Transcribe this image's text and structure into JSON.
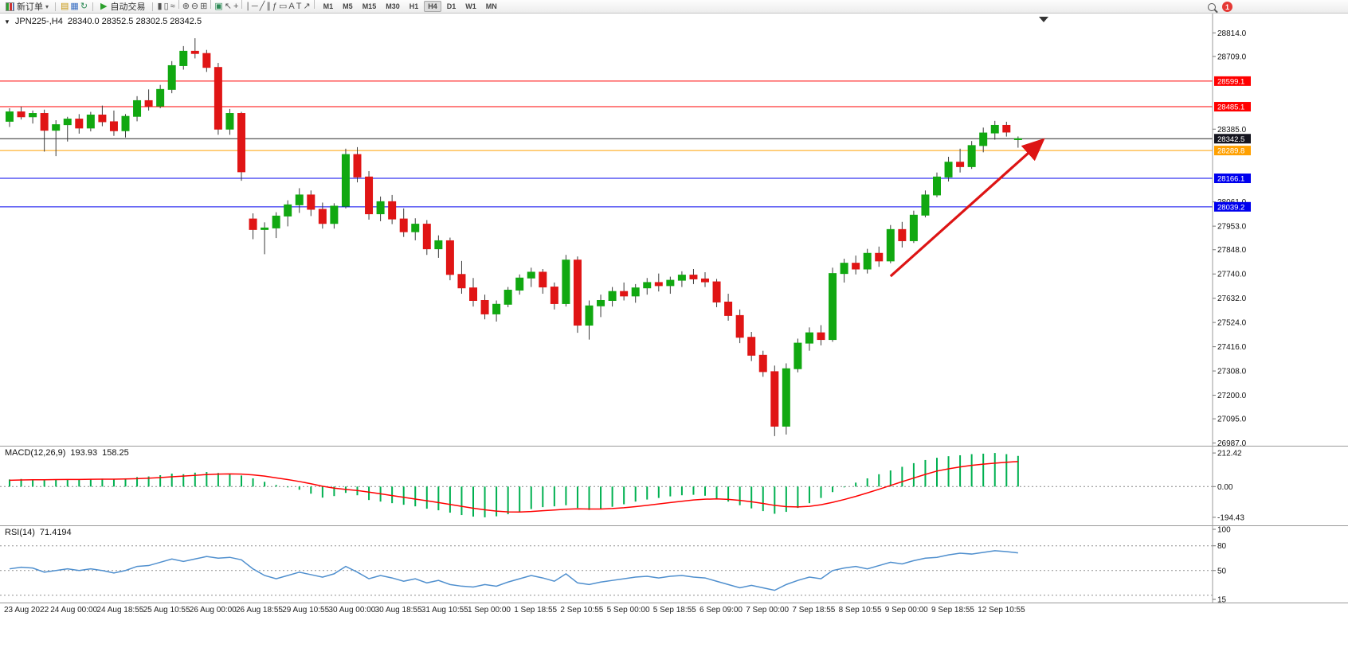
{
  "toolbar": {
    "new_order": "新订单",
    "autotrade": "自动交易",
    "timeframes": [
      "M1",
      "M5",
      "M15",
      "M30",
      "H1",
      "H4",
      "D1",
      "W1",
      "MN"
    ],
    "active_timeframe": "H4",
    "badge_count": "1",
    "icons_group1": [
      {
        "name": "market-watch-icon",
        "glyph": "▤",
        "color": "#c8960c"
      },
      {
        "name": "data-window-icon",
        "glyph": "▦",
        "color": "#3a6fc4"
      },
      {
        "name": "strategy-navigator-icon",
        "glyph": "↻",
        "color": "#2e8b57"
      }
    ],
    "icons_group2": [
      {
        "name": "bar-chart-icon",
        "glyph": "▮"
      },
      {
        "name": "candlestick-chart-icon",
        "glyph": "▯"
      },
      {
        "name": "line-chart-icon",
        "glyph": "≈"
      },
      {
        "sep": true
      },
      {
        "name": "zoom-in-icon",
        "glyph": "⊕"
      },
      {
        "name": "zoom-out-icon",
        "glyph": "⊖"
      },
      {
        "name": "tile-windows-icon",
        "glyph": "⊞"
      },
      {
        "sep": true
      },
      {
        "name": "indicators-icon",
        "glyph": "▣",
        "color": "#2e8b57"
      },
      {
        "name": "cursor-icon",
        "glyph": "↖"
      },
      {
        "name": "crosshair-icon",
        "glyph": "+"
      },
      {
        "sep": true
      },
      {
        "name": "vertical-line-icon",
        "glyph": "∣"
      },
      {
        "name": "horizontal-line-icon",
        "glyph": "─"
      },
      {
        "name": "trendline-icon",
        "glyph": "╱"
      },
      {
        "name": "channel-icon",
        "glyph": "∥"
      },
      {
        "name": "fibonacci-icon",
        "glyph": "ƒ"
      },
      {
        "name": "shapes-icon",
        "glyph": "▭"
      },
      {
        "name": "text-icon",
        "glyph": "A"
      },
      {
        "name": "text-label-icon",
        "glyph": "T"
      },
      {
        "name": "arrows-tool-icon",
        "glyph": "↗"
      },
      {
        "sep": true
      }
    ]
  },
  "chart_header": {
    "collapse_glyph": "▼",
    "symbol": "JPN225-,H4",
    "ohlc": "28340.0 28352.5 28302.5 28342.5"
  },
  "indicators": {
    "macd": {
      "name": "MACD(12,26,9)",
      "main": "193.93",
      "signal": "158.25"
    },
    "rsi": {
      "name": "RSI(14)",
      "value": "71.4194"
    }
  },
  "colors": {
    "up": "#11a811",
    "down": "#e01515",
    "wick": "#3a3a3a",
    "resistance": "#ff0000",
    "support": "#0000ee",
    "pivot": "#ffa000",
    "current_price": "#2a2a2a",
    "current_badge": "#15151f",
    "macd_hist": "#00b050",
    "macd_signal": "#ff0000",
    "rsi": "#4f8fce",
    "arrow": "#dd1414"
  },
  "chart_data": [
    {
      "type": "candlestick",
      "title": "JPN225-,H4",
      "ohlc_display": "28340.0 28352.5 28302.5 28342.5",
      "ylim": [
        26975,
        28900
      ],
      "y_ticks": [
        28814.0,
        28709.0,
        28385.0,
        28061.0,
        27953.0,
        27848.0,
        27740.0,
        27632.0,
        27524.0,
        27416.0,
        27308.0,
        27200.0,
        27095.0,
        26987.0
      ],
      "hlines": [
        {
          "price": 28599.1,
          "label": "28599.1",
          "color": "#ff0000",
          "badge_bg": "#ff0000"
        },
        {
          "price": 28485.1,
          "label": "28485.1",
          "color": "#ff0000",
          "badge_bg": "#ff0000"
        },
        {
          "price": 28342.5,
          "label": "28342.5",
          "color": "#2a2a2a",
          "badge_bg": "#15151f"
        },
        {
          "price": 28289.8,
          "label": "28289.8",
          "color": "#ffa000",
          "badge_bg": "#ffa000"
        },
        {
          "price": 28166.1,
          "label": "28166.1",
          "color": "#0000ee",
          "badge_bg": "#0000ee"
        },
        {
          "price": 28039.2,
          "label": "28039.2",
          "color": "#0000ee",
          "badge_bg": "#0000ee"
        }
      ],
      "x_label_step": 4,
      "x_labels": [
        "23 Aug 2022",
        "24 Aug 00:00",
        "24 Aug 18:55",
        "25 Aug 10:55",
        "26 Aug 00:00",
        "26 Aug 18:55",
        "29 Aug 10:55",
        "30 Aug 00:00",
        "30 Aug 18:55",
        "31 Aug 10:55",
        "1 Sep 00:00",
        "1 Sep 18:55",
        "2 Sep 10:55",
        "5 Sep 00:00",
        "5 Sep 18:55",
        "6 Sep 09:00",
        "7 Sep 00:00",
        "7 Sep 18:55",
        "8 Sep 10:55",
        "9 Sep 00:00",
        "9 Sep 18:55",
        "12 Sep 10:55"
      ],
      "candles": [
        [
          28420,
          28478,
          28395,
          28462
        ],
        [
          28462,
          28485,
          28428,
          28440
        ],
        [
          28440,
          28468,
          28410,
          28455
        ],
        [
          28455,
          28472,
          28285,
          28380
        ],
        [
          28380,
          28425,
          28265,
          28405
        ],
        [
          28405,
          28440,
          28330,
          28430
        ],
        [
          28430,
          28452,
          28365,
          28390
        ],
        [
          28390,
          28462,
          28375,
          28448
        ],
        [
          28448,
          28490,
          28398,
          28418
        ],
        [
          28418,
          28468,
          28355,
          28378
        ],
        [
          28378,
          28452,
          28348,
          28442
        ],
        [
          28442,
          28532,
          28420,
          28512
        ],
        [
          28512,
          28562,
          28468,
          28488
        ],
        [
          28488,
          28582,
          28478,
          28562
        ],
        [
          28562,
          28688,
          28545,
          28668
        ],
        [
          28668,
          28755,
          28650,
          28732
        ],
        [
          28732,
          28790,
          28700,
          28722
        ],
        [
          28722,
          28738,
          28640,
          28660
        ],
        [
          28660,
          28680,
          28360,
          28385
        ],
        [
          28385,
          28475,
          28360,
          28455
        ],
        [
          28455,
          28462,
          28155,
          28195
        ],
        [
          27985,
          28010,
          27895,
          27938
        ],
        [
          27938,
          27970,
          27828,
          27945
        ],
        [
          27945,
          28015,
          27900,
          27998
        ],
        [
          27998,
          28068,
          27952,
          28048
        ],
        [
          28048,
          28122,
          28012,
          28092
        ],
        [
          28092,
          28112,
          27998,
          28028
        ],
        [
          28028,
          28058,
          27942,
          27965
        ],
        [
          27965,
          28055,
          27942,
          28042
        ],
        [
          28042,
          28298,
          28032,
          28272
        ],
        [
          28272,
          28305,
          28148,
          28172
        ],
        [
          28172,
          28198,
          27982,
          28008
        ],
        [
          28008,
          28085,
          27975,
          28062
        ],
        [
          28062,
          28092,
          27962,
          27985
        ],
        [
          27985,
          28032,
          27905,
          27928
        ],
        [
          27928,
          27988,
          27890,
          27962
        ],
        [
          27962,
          27980,
          27825,
          27852
        ],
        [
          27852,
          27912,
          27812,
          27888
        ],
        [
          27888,
          27902,
          27712,
          27738
        ],
        [
          27738,
          27798,
          27652,
          27678
        ],
        [
          27678,
          27722,
          27595,
          27622
        ],
        [
          27622,
          27648,
          27538,
          27562
        ],
        [
          27562,
          27622,
          27528,
          27605
        ],
        [
          27605,
          27682,
          27592,
          27668
        ],
        [
          27668,
          27738,
          27648,
          27722
        ],
        [
          27722,
          27768,
          27682,
          27748
        ],
        [
          27748,
          27762,
          27652,
          27682
        ],
        [
          27682,
          27702,
          27582,
          27608
        ],
        [
          27608,
          27825,
          27595,
          27802
        ],
        [
          27802,
          27818,
          27478,
          27512
        ],
        [
          27512,
          27622,
          27448,
          27598
        ],
        [
          27598,
          27648,
          27548,
          27622
        ],
        [
          27622,
          27682,
          27595,
          27662
        ],
        [
          27662,
          27702,
          27622,
          27642
        ],
        [
          27642,
          27695,
          27612,
          27678
        ],
        [
          27678,
          27722,
          27648,
          27702
        ],
        [
          27702,
          27742,
          27662,
          27688
        ],
        [
          27688,
          27728,
          27652,
          27712
        ],
        [
          27712,
          27752,
          27682,
          27735
        ],
        [
          27735,
          27762,
          27695,
          27718
        ],
        [
          27718,
          27748,
          27682,
          27705
        ],
        [
          27705,
          27718,
          27592,
          27615
        ],
        [
          27615,
          27652,
          27532,
          27555
        ],
        [
          27555,
          27582,
          27432,
          27458
        ],
        [
          27458,
          27482,
          27352,
          27378
        ],
        [
          27378,
          27398,
          27282,
          27305
        ],
        [
          27305,
          27332,
          27018,
          27062
        ],
        [
          27062,
          27342,
          27025,
          27318
        ],
        [
          27318,
          27452,
          27302,
          27432
        ],
        [
          27432,
          27502,
          27398,
          27478
        ],
        [
          27478,
          27512,
          27422,
          27448
        ],
        [
          27448,
          27768,
          27438,
          27742
        ],
        [
          27742,
          27808,
          27702,
          27788
        ],
        [
          27788,
          27822,
          27738,
          27762
        ],
        [
          27762,
          27852,
          27742,
          27832
        ],
        [
          27832,
          27862,
          27772,
          27798
        ],
        [
          27798,
          27958,
          27788,
          27938
        ],
        [
          27938,
          27972,
          27858,
          27888
        ],
        [
          27888,
          28022,
          27878,
          28002
        ],
        [
          28002,
          28112,
          27992,
          28092
        ],
        [
          28092,
          28192,
          28082,
          28172
        ],
        [
          28172,
          28262,
          28152,
          28238
        ],
        [
          28238,
          28298,
          28192,
          28218
        ],
        [
          28218,
          28332,
          28208,
          28312
        ],
        [
          28312,
          28392,
          28282,
          28368
        ],
        [
          28368,
          28422,
          28338,
          28402
        ],
        [
          28402,
          28418,
          28352,
          28372
        ],
        [
          28340,
          28352.5,
          28302.5,
          28342.5
        ]
      ],
      "trend_arrow": {
        "from_candle": 76,
        "from_price": 27730,
        "to_candle": 89,
        "to_price": 28330
      },
      "shift_marker_x": 1310
    },
    {
      "type": "macd",
      "title": "MACD(12,26,9)",
      "values_display": [
        "193.93",
        "158.25"
      ],
      "ylim": [
        -215,
        228
      ],
      "y_ticks": [
        212.42,
        0,
        -194.43
      ],
      "histogram": [
        45,
        48,
        44,
        40,
        42,
        46,
        43,
        47,
        50,
        46,
        52,
        60,
        64,
        72,
        82,
        78,
        88,
        92,
        86,
        80,
        70,
        52,
        30,
        10,
        -5,
        -20,
        -45,
        -70,
        -60,
        -40,
        -55,
        -85,
        -95,
        -105,
        -115,
        -125,
        -140,
        -150,
        -165,
        -180,
        -190,
        -194.43,
        -188,
        -175,
        -158,
        -142,
        -130,
        -125,
        -118,
        -135,
        -148,
        -140,
        -128,
        -112,
        -95,
        -82,
        -72,
        -62,
        -55,
        -52,
        -58,
        -75,
        -95,
        -118,
        -138,
        -155,
        -172,
        -160,
        -135,
        -105,
        -72,
        -35,
        -5,
        25,
        52,
        78,
        102,
        125,
        148,
        168,
        182,
        192,
        198,
        205,
        208,
        212.42,
        205,
        193.93
      ],
      "signal": [
        40,
        42,
        43,
        43,
        44,
        45,
        45,
        46,
        47,
        47,
        48,
        50,
        53,
        57,
        62,
        66,
        71,
        76,
        79,
        80,
        79,
        74,
        66,
        55,
        44,
        32,
        18,
        2,
        -10,
        -18,
        -25,
        -35,
        -46,
        -57,
        -68,
        -79,
        -90,
        -101,
        -113,
        -125,
        -137,
        -147,
        -155,
        -160,
        -161,
        -158,
        -153,
        -148,
        -143,
        -141,
        -142,
        -142,
        -139,
        -134,
        -127,
        -119,
        -110,
        -101,
        -93,
        -85,
        -80,
        -78,
        -81,
        -87,
        -96,
        -107,
        -119,
        -127,
        -129,
        -125,
        -115,
        -100,
        -82,
        -62,
        -40,
        -17,
        7,
        31,
        54,
        77,
        98,
        112,
        124,
        134,
        142,
        148,
        154,
        158.25
      ]
    },
    {
      "type": "rsi",
      "title": "RSI(14)",
      "value_display": "71.4194",
      "ylim": [
        15,
        100
      ],
      "levels": [
        80,
        50,
        20
      ],
      "y_ticks": [
        100,
        80,
        50,
        15
      ],
      "values": [
        52,
        54,
        53,
        48,
        50,
        52,
        50,
        52,
        50,
        47,
        50,
        55,
        56,
        60,
        64,
        61,
        64,
        67,
        65,
        66,
        63,
        52,
        44,
        40,
        44,
        48,
        45,
        42,
        46,
        55,
        48,
        40,
        44,
        41,
        37,
        40,
        35,
        38,
        33,
        31,
        30,
        33,
        31,
        36,
        40,
        44,
        41,
        37,
        46,
        35,
        33,
        36,
        38,
        40,
        42,
        43,
        41,
        43,
        44,
        42,
        41,
        37,
        33,
        29,
        32,
        29,
        26,
        33,
        38,
        42,
        40,
        50,
        53,
        55,
        52,
        56,
        60,
        58,
        62,
        65,
        66,
        69,
        71,
        70,
        72,
        74,
        73,
        71.42
      ]
    }
  ]
}
